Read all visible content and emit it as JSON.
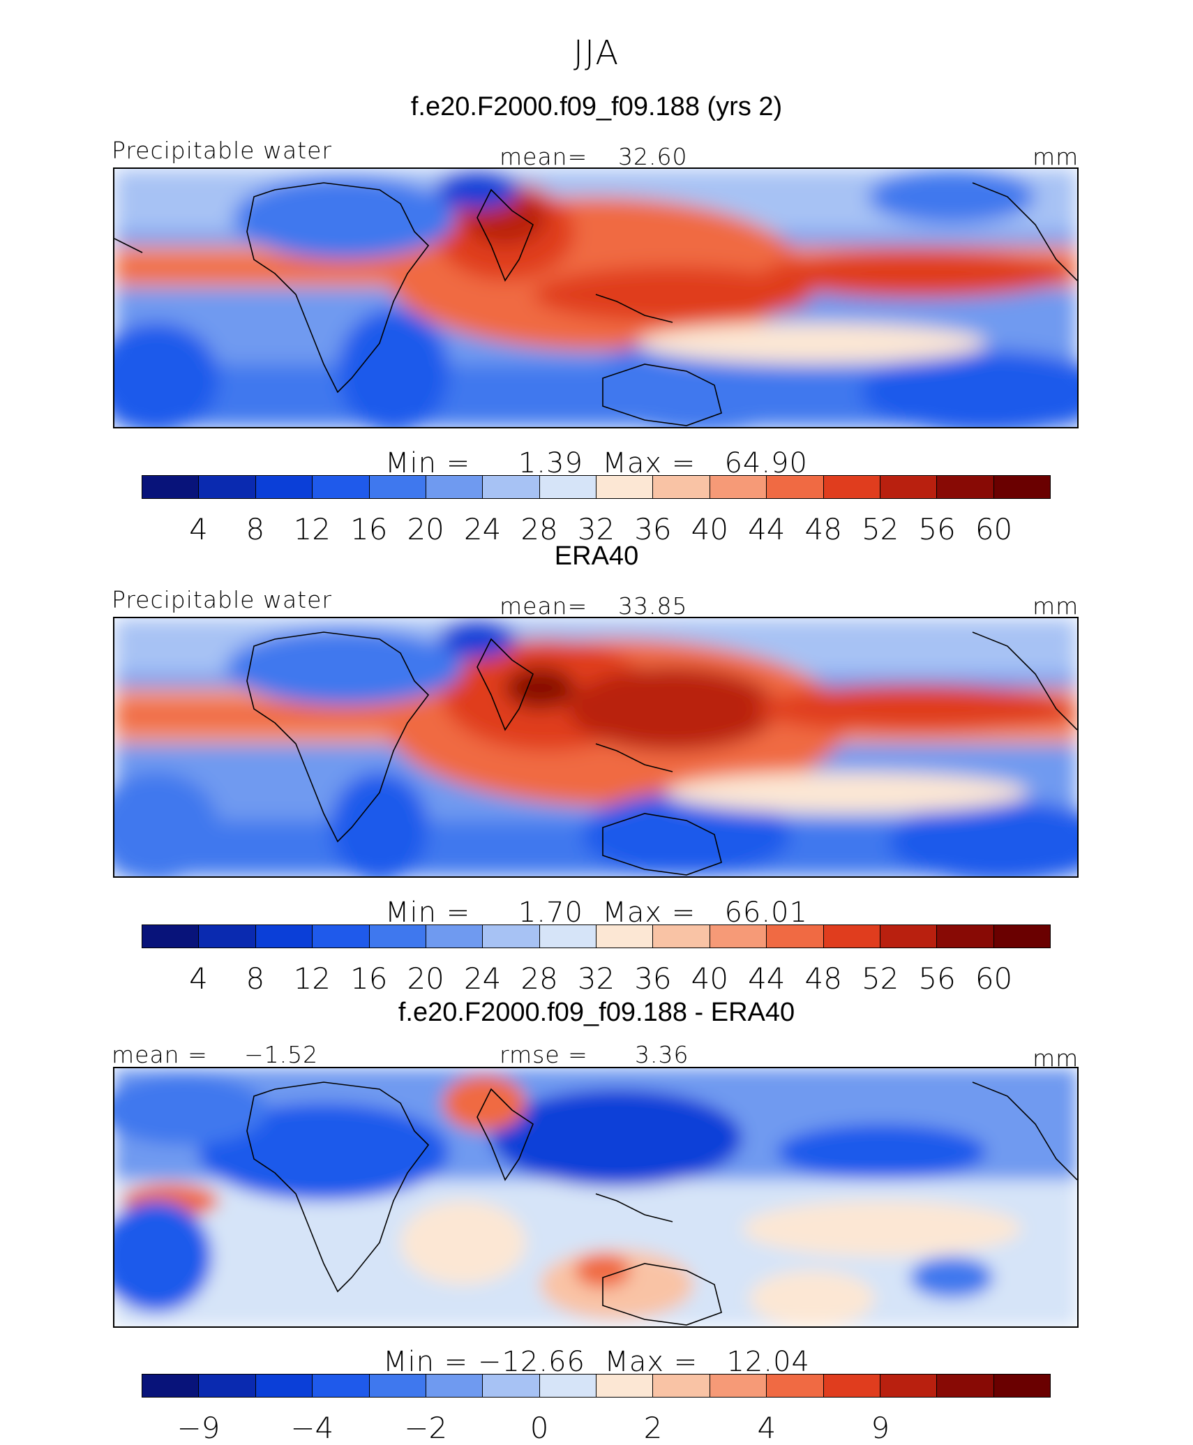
{
  "chart_data": [
    {
      "type": "heatmap",
      "season": "JJA",
      "title": "f.e20.F2000.f09_f09.188 (yrs 2)",
      "variable": "Precipitable water",
      "units": "mm",
      "mean_label": "mean=",
      "mean_value": "32.60",
      "min_label": "Min =",
      "min_value": "1.39",
      "max_label": "Max =",
      "max_value": "64.90",
      "levels": [
        4,
        8,
        12,
        16,
        20,
        24,
        28,
        32,
        36,
        40,
        44,
        48,
        52,
        56,
        60
      ],
      "tick_labels": [
        "4",
        "8",
        "12",
        "16",
        "20",
        "24",
        "28",
        "32",
        "36",
        "40",
        "44",
        "48",
        "52",
        "56",
        "60"
      ]
    },
    {
      "type": "heatmap",
      "title": "ERA40",
      "variable": "Precipitable water",
      "units": "mm",
      "mean_label": "mean=",
      "mean_value": "33.85",
      "min_label": "Min =",
      "min_value": "1.70",
      "max_label": "Max =",
      "max_value": "66.01",
      "levels": [
        4,
        8,
        12,
        16,
        20,
        24,
        28,
        32,
        36,
        40,
        44,
        48,
        52,
        56,
        60
      ],
      "tick_labels": [
        "4",
        "8",
        "12",
        "16",
        "20",
        "24",
        "28",
        "32",
        "36",
        "40",
        "44",
        "48",
        "52",
        "56",
        "60"
      ]
    },
    {
      "type": "heatmap",
      "title": "f.e20.F2000.f09_f09.188 - ERA40",
      "units": "mm",
      "mean_label": "mean =",
      "mean_value": "−1.52",
      "rmse_label": "rmse =",
      "rmse_value": "3.36",
      "min_label": "Min =",
      "min_value": "−12.66",
      "max_label": "Max =",
      "max_value": "12.04",
      "levels": [
        -9,
        -6,
        -4,
        -3,
        -2,
        -1,
        0,
        1,
        2,
        3,
        4,
        6,
        9,
        12,
        15
      ],
      "tick_labels": [
        "−9",
        "−4",
        "−2",
        "0",
        "2",
        "4",
        "9"
      ]
    }
  ],
  "page": {
    "season": "JJA"
  },
  "colors": {
    "palette": [
      "#08137a",
      "#0a2ab0",
      "#0b3fd8",
      "#1f5aeb",
      "#3f78ee",
      "#6f9af0",
      "#a7c2f4",
      "#d6e4f8",
      "#fce7d4",
      "#f9c3a5",
      "#f69a77",
      "#f06a43",
      "#e03d1e",
      "#b9200f",
      "#880a05",
      "#6a0000"
    ],
    "coast": "#000000"
  }
}
